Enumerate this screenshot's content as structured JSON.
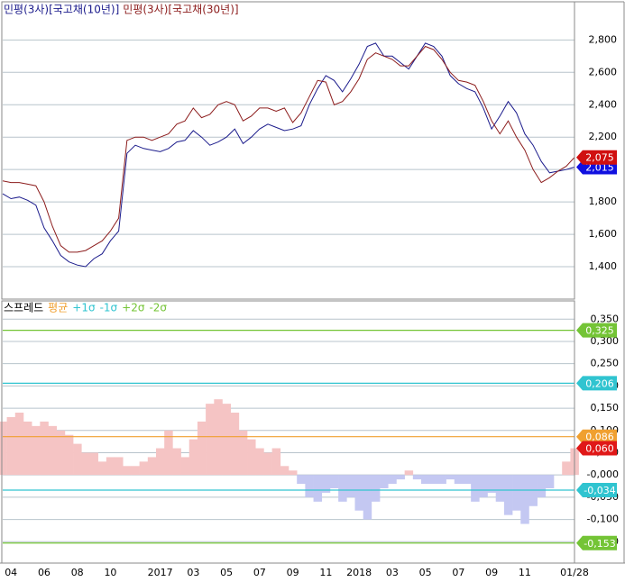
{
  "chart_data": [
    {
      "type": "line",
      "grid": true,
      "ylim": [
        1200,
        3030
      ],
      "yticks": [
        {
          "value": 1400,
          "label": "1,400"
        },
        {
          "value": 1600,
          "label": "1,600"
        },
        {
          "value": 1800,
          "label": "1,800"
        },
        {
          "value": 2000,
          "label": "2,000"
        },
        {
          "value": 2200,
          "label": "2,200"
        },
        {
          "value": 2400,
          "label": "2,400"
        },
        {
          "value": 2600,
          "label": "2,600"
        },
        {
          "value": 2800,
          "label": "2,800"
        }
      ],
      "series": [
        {
          "name": "민평(3사)[국고채(10년)]",
          "color": "#1c1c8c",
          "last_label": {
            "value": 2015,
            "label": "2,015"
          },
          "label_color": "#1010e0",
          "values": [
            1850,
            1820,
            1830,
            1810,
            1780,
            1640,
            1560,
            1470,
            1430,
            1410,
            1400,
            1450,
            1480,
            1560,
            1620,
            2100,
            2150,
            2130,
            2120,
            2110,
            2130,
            2170,
            2180,
            2240,
            2200,
            2150,
            2170,
            2200,
            2250,
            2160,
            2200,
            2250,
            2280,
            2260,
            2240,
            2250,
            2270,
            2400,
            2500,
            2580,
            2550,
            2480,
            2560,
            2650,
            2760,
            2780,
            2700,
            2700,
            2660,
            2620,
            2700,
            2780,
            2760,
            2700,
            2580,
            2530,
            2500,
            2480,
            2380,
            2250,
            2330,
            2420,
            2350,
            2220,
            2150,
            2050,
            1980,
            1990,
            2000,
            2015
          ]
        },
        {
          "name": "민평(3사)[국고채(30년)]",
          "color": "#8c1c1c",
          "last_label": {
            "value": 2075,
            "label": "2,075"
          },
          "label_color": "#d01010",
          "values": [
            1930,
            1920,
            1920,
            1910,
            1900,
            1800,
            1650,
            1530,
            1490,
            1490,
            1500,
            1530,
            1560,
            1620,
            1700,
            2180,
            2200,
            2200,
            2180,
            2200,
            2220,
            2280,
            2300,
            2380,
            2320,
            2340,
            2400,
            2420,
            2400,
            2300,
            2330,
            2380,
            2380,
            2360,
            2380,
            2290,
            2350,
            2450,
            2550,
            2540,
            2400,
            2420,
            2480,
            2560,
            2680,
            2720,
            2700,
            2680,
            2640,
            2640,
            2700,
            2760,
            2740,
            2680,
            2600,
            2550,
            2540,
            2520,
            2420,
            2300,
            2220,
            2300,
            2200,
            2120,
            2000,
            1920,
            1950,
            1990,
            2020,
            2075
          ]
        }
      ]
    },
    {
      "type": "bar",
      "grid": true,
      "ylim": [
        -0.198,
        0.389
      ],
      "yticks": [
        {
          "value": 0.35,
          "label": "0,350"
        },
        {
          "value": 0.3,
          "label": "0,300"
        },
        {
          "value": 0.25,
          "label": "0,250"
        },
        {
          "value": 0.2,
          "label": "0,200"
        },
        {
          "value": 0.15,
          "label": "0,150"
        },
        {
          "value": 0.1,
          "label": "0,100"
        },
        {
          "value": 0.05,
          "label": "0,050"
        },
        {
          "value": 0,
          "label": "-0,000"
        },
        {
          "value": -0.05,
          "label": "-0,050"
        },
        {
          "value": -0.1,
          "label": "-0,100"
        },
        {
          "value": -0.15,
          "label": "-0,150"
        }
      ],
      "categories": [
        null,
        "04",
        null,
        null,
        null,
        "06",
        null,
        null,
        null,
        "08",
        null,
        null,
        null,
        "10",
        null,
        null,
        null,
        null,
        null,
        "2017",
        null,
        null,
        null,
        "03",
        null,
        null,
        null,
        "05",
        null,
        null,
        null,
        "07",
        null,
        null,
        null,
        "09",
        null,
        null,
        null,
        "11",
        null,
        null,
        null,
        "2018",
        null,
        null,
        null,
        "03",
        null,
        null,
        null,
        "05",
        null,
        null,
        null,
        "07",
        null,
        null,
        null,
        "09",
        null,
        null,
        null,
        "11",
        null,
        null,
        null,
        null,
        null,
        "01/28"
      ],
      "series": [
        {
          "name": "스프레드",
          "color": "#000000",
          "pos_color": "#f5c4c4",
          "neg_color": "#c4c8f2",
          "last_label": {
            "value": 0.06,
            "label": "0,060"
          },
          "label_color": "#e01818",
          "values": [
            0.12,
            0.13,
            0.14,
            0.12,
            0.11,
            0.12,
            0.11,
            0.1,
            0.09,
            0.07,
            0.05,
            0.05,
            0.03,
            0.04,
            0.04,
            0.02,
            0.02,
            0.03,
            0.04,
            0.06,
            0.1,
            0.06,
            0.04,
            0.08,
            0.12,
            0.16,
            0.17,
            0.16,
            0.14,
            0.1,
            0.08,
            0.06,
            0.05,
            0.06,
            0.02,
            0.01,
            -0.02,
            -0.05,
            -0.06,
            -0.04,
            -0.03,
            -0.06,
            -0.05,
            -0.08,
            -0.1,
            -0.06,
            -0.03,
            -0.02,
            -0.01,
            0.01,
            -0.01,
            -0.02,
            -0.02,
            -0.02,
            -0.01,
            -0.02,
            -0.02,
            -0.06,
            -0.05,
            -0.04,
            -0.06,
            -0.09,
            -0.08,
            -0.11,
            -0.07,
            -0.05,
            -0.03,
            0.0,
            0.03,
            0.06
          ]
        }
      ],
      "bands": [
        {
          "name": "평균",
          "value": 0.086,
          "label": "0,086",
          "color": "#f0a030"
        },
        {
          "name": "+1σ",
          "value": 0.206,
          "label": "0,206",
          "color": "#30c4d0"
        },
        {
          "name": "-1σ",
          "value": -0.034,
          "label": "-0,034",
          "color": "#30c4d0"
        },
        {
          "name": "+2σ",
          "value": 0.325,
          "label": "0,325",
          "color": "#74c436"
        },
        {
          "name": "-2σ",
          "value": -0.153,
          "label": "-0,153",
          "color": "#74c436"
        }
      ]
    }
  ]
}
